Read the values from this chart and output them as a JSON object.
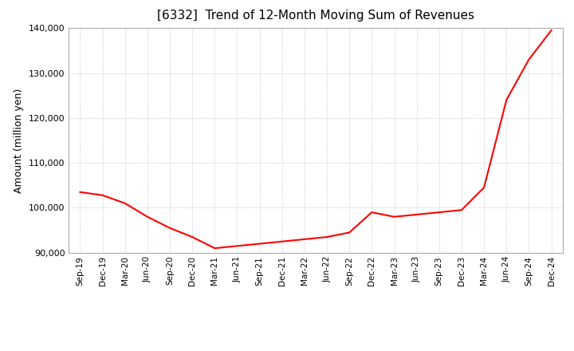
{
  "title": "[6332]  Trend of 12-Month Moving Sum of Revenues",
  "ylabel": "Amount (million yen)",
  "background_color": "#ffffff",
  "plot_bg_color": "#ffffff",
  "line_color": "#ff0000",
  "line_width": 1.5,
  "grid_color": "#999999",
  "ylim": [
    90000,
    140000
  ],
  "yticks": [
    90000,
    100000,
    110000,
    120000,
    130000,
    140000
  ],
  "x_labels": [
    "Sep-19",
    "Dec-19",
    "Mar-20",
    "Jun-20",
    "Sep-20",
    "Dec-20",
    "Mar-21",
    "Jun-21",
    "Sep-21",
    "Dec-21",
    "Mar-22",
    "Jun-22",
    "Sep-22",
    "Dec-22",
    "Mar-23",
    "Jun-23",
    "Sep-23",
    "Dec-23",
    "Mar-24",
    "Jun-24",
    "Sep-24",
    "Dec-24"
  ],
  "values": [
    103500,
    102800,
    101000,
    98000,
    95500,
    93500,
    91000,
    91500,
    92000,
    92500,
    93000,
    93500,
    94500,
    99000,
    98000,
    98500,
    99000,
    99500,
    104500,
    124000,
    133000,
    139500
  ]
}
